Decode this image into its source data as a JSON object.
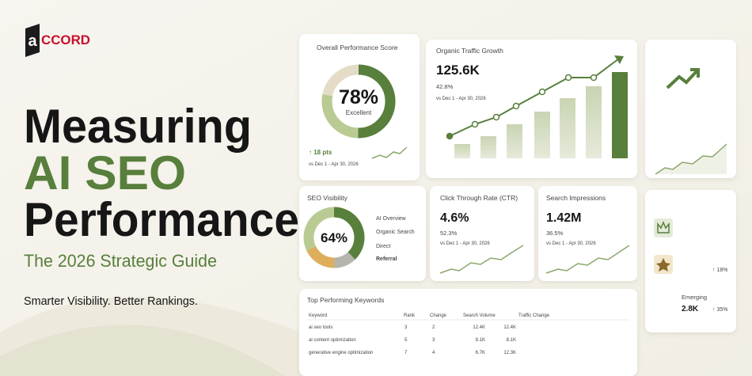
{
  "logo": {
    "mark": "a",
    "text": "CCORD"
  },
  "headline": [
    "Measuring",
    "AI SEO",
    "Performance"
  ],
  "subtitle": "The 2026 Strategic Guide",
  "tagline": "Smarter Visibility. Better Rankings.",
  "score_card": {
    "title": "Overall Performance Score",
    "value": "78%",
    "label": "Excellent",
    "change": "↑ 18 pts",
    "period": "vs Dec 1 - Apr 30, 2026"
  },
  "traffic_card": {
    "title": "Organic Traffic Growth",
    "value": "125.6K",
    "change": "42.8%",
    "period": "vs Dec 1 - Apr 30, 2026"
  },
  "visibility_card": {
    "title": "SEO Visibility",
    "value": "64%",
    "legend": [
      "AI Overview",
      "Organic Search",
      "Direct",
      "Referral"
    ]
  },
  "ctr_card": {
    "title": "Click Through Rate (CTR)",
    "value": "4.6%",
    "change": "52.3%",
    "period": "vs Dec 1 - Apr 30, 2026"
  },
  "impressions_card": {
    "title": "Search Impressions",
    "value": "1.42M",
    "change": "36.5%",
    "period": "vs Dec 1 - Apr 30, 2026"
  },
  "side_card": {
    "change_1": "↑ 18%",
    "label": "Emerging",
    "value": "2.8K",
    "change_2": "↑ 35%"
  },
  "table": {
    "title": "Top Performing Keywords",
    "columns": [
      "Keyword",
      "Rank",
      "Change",
      "Search Volume",
      "Traffic Change"
    ],
    "rows": [
      [
        "ai seo tools",
        "3",
        "2",
        "12.4K",
        "12.4K"
      ],
      [
        "ai content optimization",
        "5",
        "3",
        "8.1K",
        "8.1K"
      ],
      [
        "generative engine optimization",
        "7",
        "4",
        "6.7K",
        "12.3K"
      ]
    ]
  }
}
